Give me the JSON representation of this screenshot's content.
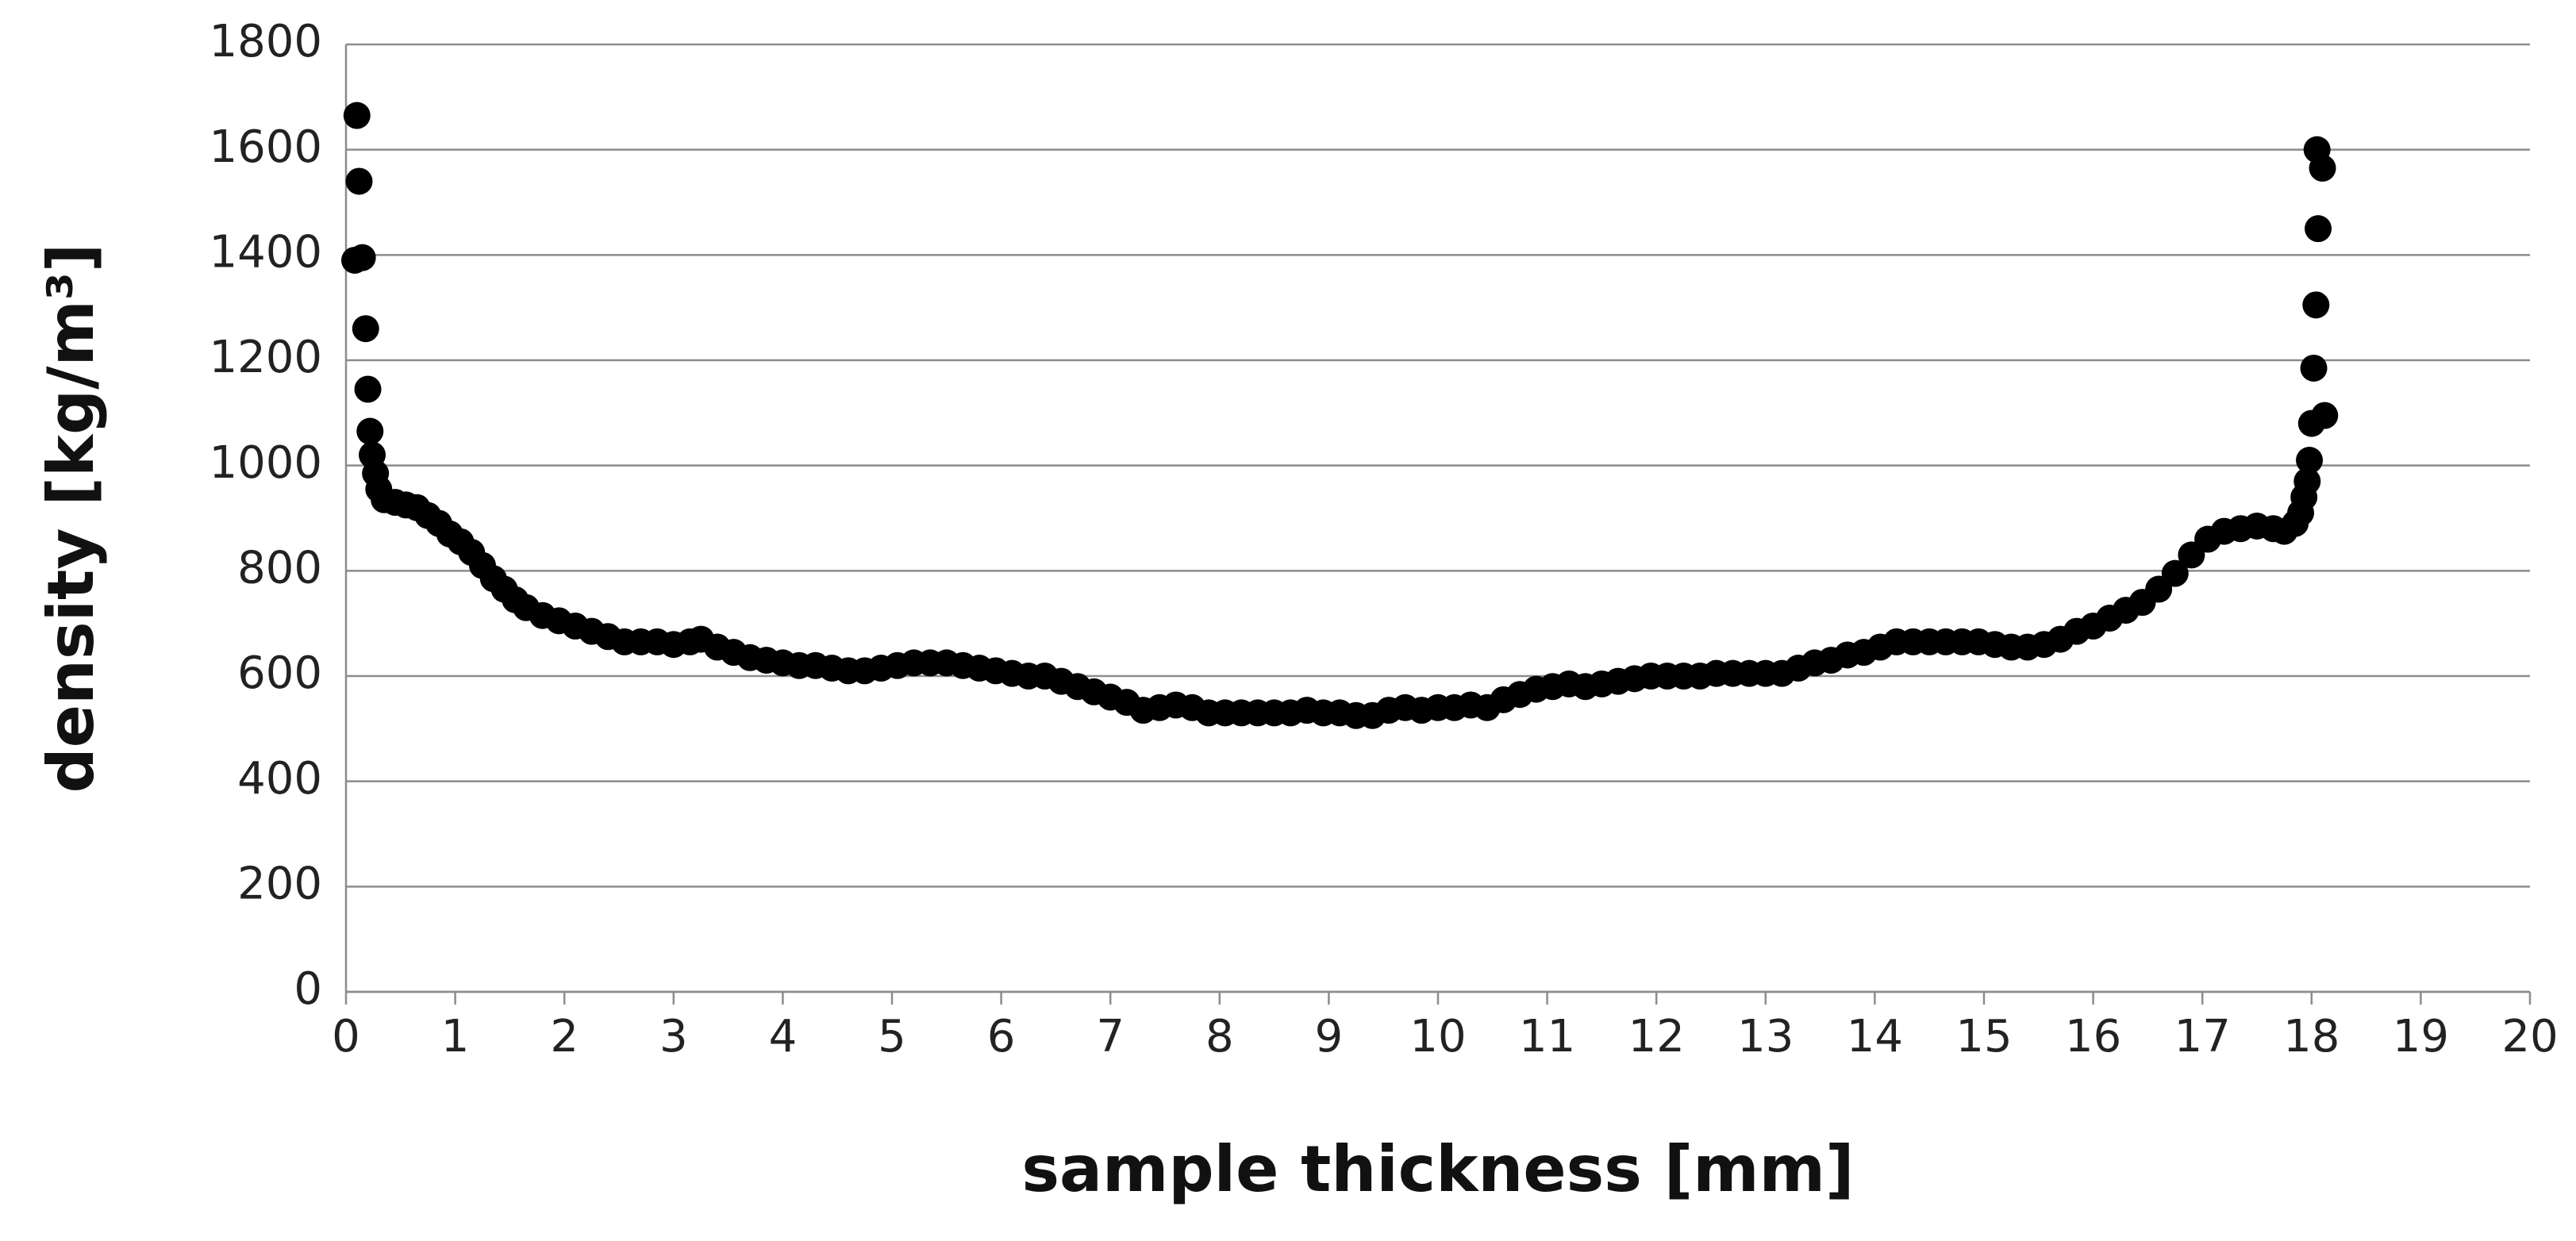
{
  "chart_data": {
    "type": "scatter",
    "xlabel": "sample thickness [mm]",
    "ylabel": "density [kg/m³]",
    "x": [
      0.08,
      0.1,
      0.12,
      0.15,
      0.18,
      0.2,
      0.22,
      0.24,
      0.27,
      0.3,
      0.35,
      0.45,
      0.55,
      0.65,
      0.75,
      0.85,
      0.95,
      1.05,
      1.15,
      1.25,
      1.35,
      1.45,
      1.55,
      1.65,
      1.8,
      1.95,
      2.1,
      2.25,
      2.4,
      2.55,
      2.7,
      2.85,
      3.0,
      3.15,
      3.25,
      3.4,
      3.55,
      3.7,
      3.85,
      4.0,
      4.15,
      4.3,
      4.45,
      4.6,
      4.75,
      4.9,
      5.05,
      5.2,
      5.35,
      5.5,
      5.65,
      5.8,
      5.95,
      6.1,
      6.25,
      6.4,
      6.55,
      6.7,
      6.85,
      7.0,
      7.15,
      7.3,
      7.45,
      7.6,
      7.75,
      7.9,
      8.05,
      8.2,
      8.35,
      8.5,
      8.65,
      8.8,
      8.95,
      9.1,
      9.25,
      9.4,
      9.55,
      9.7,
      9.85,
      10.0,
      10.15,
      10.3,
      10.45,
      10.6,
      10.75,
      10.9,
      11.05,
      11.2,
      11.35,
      11.5,
      11.65,
      11.8,
      11.95,
      12.1,
      12.25,
      12.4,
      12.55,
      12.7,
      12.85,
      13.0,
      13.15,
      13.3,
      13.45,
      13.6,
      13.75,
      13.9,
      14.05,
      14.2,
      14.35,
      14.5,
      14.65,
      14.8,
      14.95,
      15.1,
      15.25,
      15.4,
      15.55,
      15.7,
      15.85,
      16.0,
      16.15,
      16.3,
      16.45,
      16.6,
      16.75,
      16.9,
      17.05,
      17.2,
      17.35,
      17.5,
      17.65,
      17.75,
      17.85,
      17.9,
      17.93,
      17.96,
      17.98,
      18.0,
      18.02,
      18.04,
      18.06,
      18.05,
      18.1,
      18.12
    ],
    "values": [
      1390,
      1665,
      1540,
      1395,
      1260,
      1145,
      1065,
      1020,
      985,
      955,
      935,
      930,
      925,
      920,
      905,
      890,
      870,
      855,
      835,
      810,
      785,
      765,
      745,
      730,
      715,
      705,
      695,
      685,
      675,
      665,
      665,
      665,
      660,
      665,
      670,
      655,
      645,
      635,
      630,
      625,
      620,
      620,
      615,
      610,
      610,
      615,
      620,
      625,
      625,
      625,
      620,
      615,
      610,
      605,
      600,
      600,
      590,
      580,
      570,
      560,
      550,
      535,
      540,
      545,
      540,
      530,
      530,
      530,
      530,
      530,
      530,
      535,
      530,
      530,
      525,
      525,
      535,
      540,
      535,
      540,
      540,
      545,
      540,
      555,
      565,
      575,
      580,
      585,
      580,
      585,
      590,
      595,
      600,
      600,
      600,
      600,
      605,
      605,
      605,
      605,
      605,
      615,
      625,
      630,
      640,
      645,
      655,
      665,
      665,
      665,
      665,
      665,
      665,
      660,
      655,
      655,
      660,
      670,
      685,
      695,
      710,
      725,
      740,
      765,
      795,
      830,
      860,
      875,
      880,
      885,
      880,
      875,
      890,
      910,
      940,
      970,
      1010,
      1080,
      1185,
      1305,
      1450,
      1600,
      1565,
      1095
    ],
    "color": "#000000",
    "xlim": [
      0,
      20
    ],
    "xticks": [
      0,
      1,
      2,
      3,
      4,
      5,
      6,
      7,
      8,
      9,
      10,
      11,
      12,
      13,
      14,
      15,
      16,
      17,
      18,
      19,
      20
    ],
    "ylim": [
      0,
      1800
    ],
    "yticks": [
      0,
      200,
      400,
      600,
      800,
      1000,
      1200,
      1400,
      1600,
      1800
    ],
    "grid": true
  }
}
